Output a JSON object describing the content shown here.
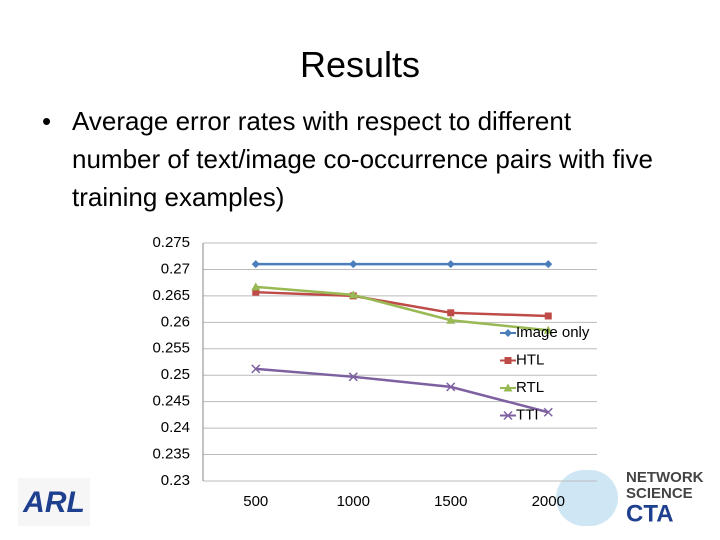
{
  "slide": {
    "title": "Results",
    "bullet": "Average error rates with respect to different number of text/image co-occurrence pairs with five training examples)"
  },
  "logos": {
    "left": "ARL",
    "right": [
      "NETWORK",
      "SCIENCE",
      "CTA"
    ]
  },
  "chart_data": {
    "type": "line",
    "categories": [
      "500",
      "1000",
      "1500",
      "2000"
    ],
    "series": [
      {
        "name": "Image only",
        "color": "#4a7ebb",
        "marker": "diamond",
        "values": [
          0.271,
          0.271,
          0.271,
          0.271
        ]
      },
      {
        "name": "HTL",
        "color": "#be4b48",
        "marker": "square",
        "values": [
          0.2657,
          0.265,
          0.2618,
          0.2612
        ]
      },
      {
        "name": "RTL",
        "color": "#98b954",
        "marker": "triangle",
        "values": [
          0.2667,
          0.2652,
          0.2604,
          0.2585
        ]
      },
      {
        "name": "TTI",
        "color": "#7d60a0",
        "marker": "x",
        "values": [
          0.2512,
          0.2497,
          0.2478,
          0.243
        ]
      }
    ],
    "ylim": [
      0.23,
      0.275
    ],
    "yticks": [
      0.23,
      0.235,
      0.24,
      0.245,
      0.25,
      0.255,
      0.26,
      0.265,
      0.27,
      0.275
    ],
    "grid": true,
    "legend": "right"
  }
}
